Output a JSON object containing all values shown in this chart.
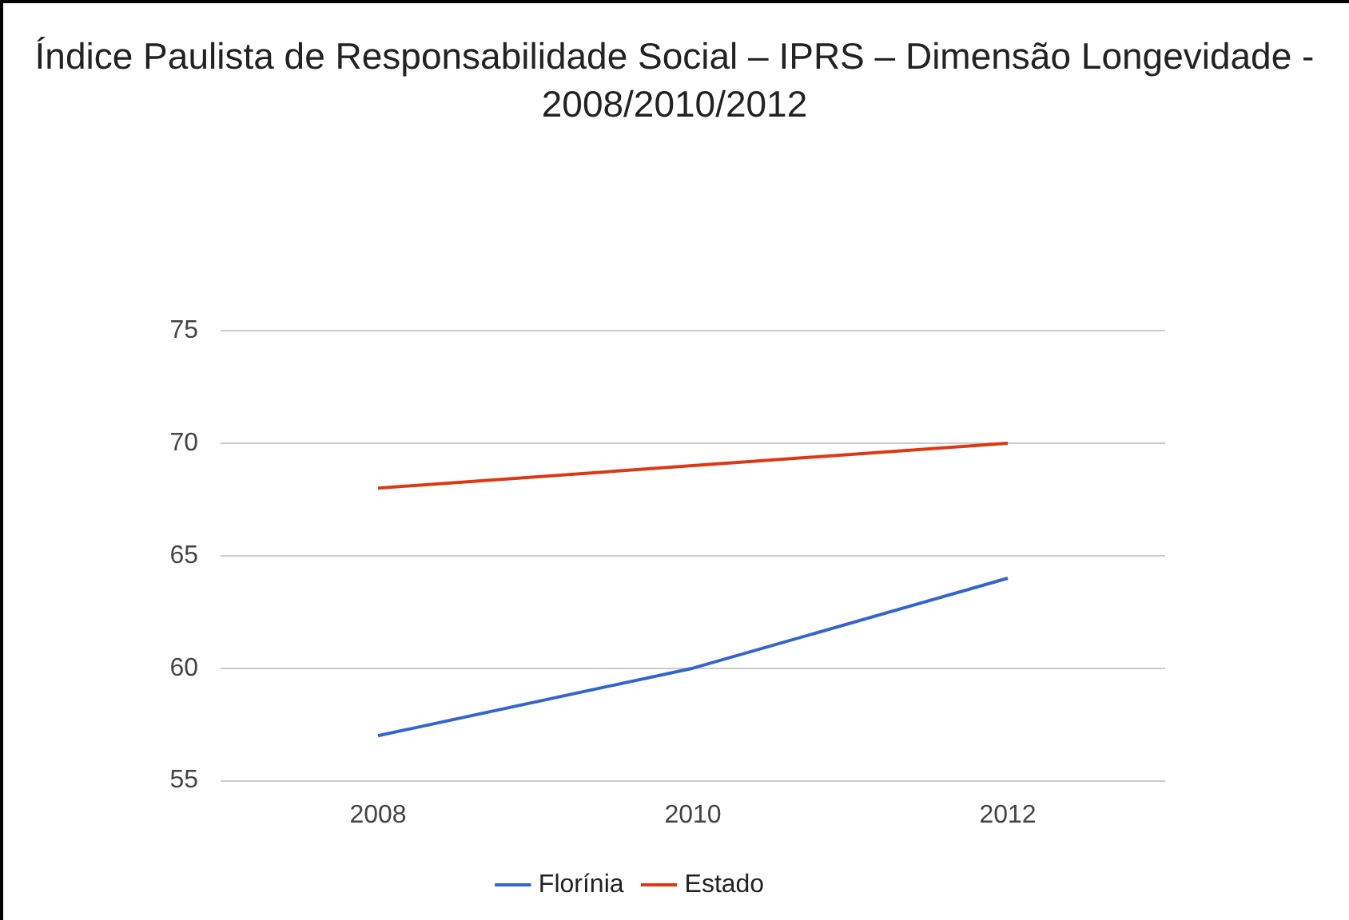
{
  "chart_data": {
    "type": "line",
    "title": "Índice Paulista de Responsabilidade Social – IPRS – Dimensão Longevidade - 2008/2010/2012",
    "categories": [
      "2008",
      "2010",
      "2012"
    ],
    "series": [
      {
        "name": "Florínia",
        "color": "#3366cc",
        "values": [
          57,
          60,
          64
        ]
      },
      {
        "name": "Estado",
        "color": "#dc3912",
        "values": [
          68,
          69,
          70
        ]
      }
    ],
    "ylim": [
      55,
      75
    ],
    "yticks": [
      55,
      60,
      65,
      70,
      75
    ],
    "grid": "y",
    "legend": "bottom",
    "marker": "none",
    "line_style": "solid"
  }
}
